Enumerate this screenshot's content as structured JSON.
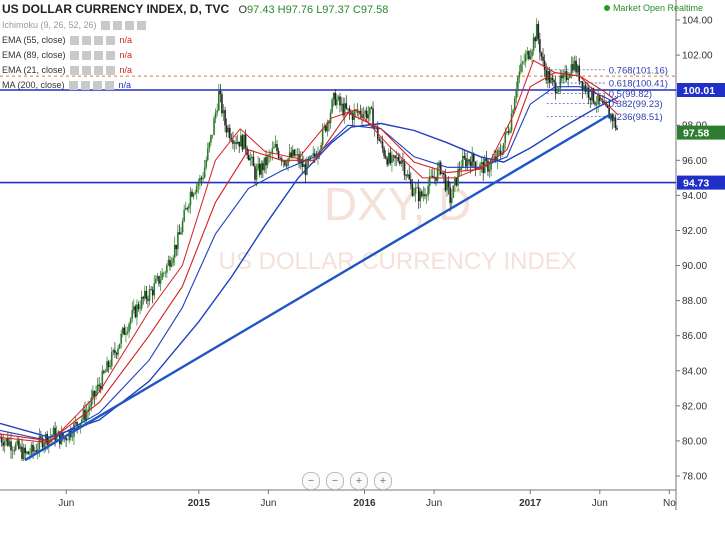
{
  "header": {
    "symbol": "US DOLLAR CURRENCY INDEX, D, TVC",
    "open": "97.43",
    "high": "H97.76",
    "low": "L97.37",
    "close": "C97.58",
    "open_prefix": "O",
    "market_status": "Market Open",
    "realtime": "Realtime"
  },
  "indicators": [
    {
      "label": "Ichimoku (9, 26, 52, 26)",
      "value": "",
      "color": "#999999"
    },
    {
      "label": "EMA (55, close)",
      "value": "n/a",
      "color": "#d02020"
    },
    {
      "label": "EMA (89, close)",
      "value": "n/a",
      "color": "#d02020"
    },
    {
      "label": "EMA (21, close)",
      "value": "n/a",
      "color": "#d02020"
    },
    {
      "label": "MA (200, close)",
      "value": "n/a",
      "color": "#2030d0"
    }
  ],
  "watermark": {
    "big": "DXY, D",
    "sub": "US DOLLAR CURRENCY INDEX"
  },
  "zoom_controls": [
    "−",
    "−",
    "+",
    "+"
  ],
  "chart_data": {
    "type": "candlestick",
    "y_ticks": [
      78,
      80,
      82,
      84,
      86,
      88,
      90,
      92,
      94,
      96,
      98,
      100,
      102,
      104
    ],
    "ylim": [
      77.2,
      104.8
    ],
    "x_ticks": [
      {
        "label": "Jun",
        "t": 0.2
      },
      {
        "label": "2015",
        "t": 1.0
      },
      {
        "label": "Jun",
        "t": 1.42
      },
      {
        "label": "2016",
        "t": 2.0
      },
      {
        "label": "Jun",
        "t": 2.42
      },
      {
        "label": "2017",
        "t": 3.0
      },
      {
        "label": "Jun",
        "t": 3.42
      },
      {
        "label": "No",
        "t": 3.84
      }
    ],
    "xlim": [
      -0.2,
      3.88
    ],
    "price_path": [
      [
        -0.2,
        80.2
      ],
      [
        -0.12,
        79.8
      ],
      [
        -0.05,
        79.2
      ],
      [
        0.0,
        79.4
      ],
      [
        0.06,
        80.1
      ],
      [
        0.12,
        80.4
      ],
      [
        0.18,
        80.1
      ],
      [
        0.24,
        80.7
      ],
      [
        0.32,
        81.6
      ],
      [
        0.4,
        83.2
      ],
      [
        0.48,
        84.8
      ],
      [
        0.56,
        86.5
      ],
      [
        0.64,
        87.8
      ],
      [
        0.72,
        88.6
      ],
      [
        0.8,
        89.8
      ],
      [
        0.88,
        91.6
      ],
      [
        0.95,
        94.2
      ],
      [
        1.02,
        95.0
      ],
      [
        1.08,
        97.5
      ],
      [
        1.12,
        99.8
      ],
      [
        1.16,
        98.0
      ],
      [
        1.22,
        97.2
      ],
      [
        1.28,
        97.0
      ],
      [
        1.34,
        95.2
      ],
      [
        1.4,
        95.8
      ],
      [
        1.46,
        96.7
      ],
      [
        1.52,
        96.0
      ],
      [
        1.58,
        96.3
      ],
      [
        1.64,
        95.5
      ],
      [
        1.7,
        96.2
      ],
      [
        1.76,
        97.8
      ],
      [
        1.82,
        99.6
      ],
      [
        1.86,
        99.0
      ],
      [
        1.92,
        98.6
      ],
      [
        1.98,
        98.8
      ],
      [
        2.04,
        98.6
      ],
      [
        2.1,
        96.8
      ],
      [
        2.16,
        95.8
      ],
      [
        2.22,
        96.2
      ],
      [
        2.28,
        94.5
      ],
      [
        2.34,
        93.9
      ],
      [
        2.4,
        94.8
      ],
      [
        2.46,
        95.6
      ],
      [
        2.52,
        93.7
      ],
      [
        2.58,
        95.8
      ],
      [
        2.64,
        96.1
      ],
      [
        2.7,
        95.6
      ],
      [
        2.76,
        95.7
      ],
      [
        2.82,
        96.4
      ],
      [
        2.88,
        98.2
      ],
      [
        2.92,
        100.6
      ],
      [
        2.96,
        101.6
      ],
      [
        3.0,
        102.3
      ],
      [
        3.04,
        103.4
      ],
      [
        3.08,
        101.3
      ],
      [
        3.14,
        100.2
      ],
      [
        3.2,
        100.5
      ],
      [
        3.26,
        101.6
      ],
      [
        3.32,
        100.3
      ],
      [
        3.38,
        99.6
      ],
      [
        3.44,
        99.0
      ],
      [
        3.5,
        98.4
      ],
      [
        3.53,
        97.6
      ]
    ],
    "overlays": [
      {
        "name": "MA (200, close)",
        "color": "#1f3fbf",
        "width": 1.4,
        "points": [
          [
            -0.2,
            81.0
          ],
          [
            0.1,
            80.2
          ],
          [
            0.4,
            81.2
          ],
          [
            0.7,
            83.4
          ],
          [
            1.0,
            86.8
          ],
          [
            1.2,
            89.4
          ],
          [
            1.4,
            92.3
          ],
          [
            1.6,
            95.0
          ],
          [
            1.8,
            97.0
          ],
          [
            1.92,
            97.9
          ],
          [
            2.1,
            98.1
          ],
          [
            2.3,
            97.7
          ],
          [
            2.5,
            97.0
          ],
          [
            2.7,
            96.2
          ],
          [
            2.84,
            95.9
          ],
          [
            3.0,
            96.7
          ],
          [
            3.2,
            97.9
          ],
          [
            3.4,
            99.0
          ],
          [
            3.53,
            99.6
          ]
        ]
      },
      {
        "name": "EMA (89, close)",
        "color": "#1f3fbf",
        "width": 1.1,
        "points": [
          [
            -0.2,
            80.6
          ],
          [
            0.1,
            80.0
          ],
          [
            0.4,
            81.6
          ],
          [
            0.7,
            84.6
          ],
          [
            0.9,
            87.6
          ],
          [
            1.1,
            91.8
          ],
          [
            1.3,
            94.4
          ],
          [
            1.5,
            95.4
          ],
          [
            1.7,
            96.2
          ],
          [
            1.9,
            98.0
          ],
          [
            2.1,
            97.8
          ],
          [
            2.3,
            96.2
          ],
          [
            2.5,
            95.6
          ],
          [
            2.7,
            95.6
          ],
          [
            2.86,
            96.2
          ],
          [
            3.0,
            99.2
          ],
          [
            3.15,
            100.2
          ],
          [
            3.3,
            100.2
          ],
          [
            3.45,
            99.6
          ],
          [
            3.53,
            99.2
          ]
        ]
      },
      {
        "name": "EMA (55, close)",
        "color": "#d42020",
        "width": 1.1,
        "points": [
          [
            -0.2,
            80.4
          ],
          [
            0.1,
            80.0
          ],
          [
            0.4,
            82.2
          ],
          [
            0.7,
            86.0
          ],
          [
            0.9,
            88.8
          ],
          [
            1.1,
            93.6
          ],
          [
            1.3,
            96.6
          ],
          [
            1.5,
            96.0
          ],
          [
            1.7,
            96.0
          ],
          [
            1.9,
            98.7
          ],
          [
            2.1,
            97.8
          ],
          [
            2.3,
            95.9
          ],
          [
            2.5,
            95.3
          ],
          [
            2.7,
            95.5
          ],
          [
            2.86,
            96.6
          ],
          [
            3.0,
            100.2
          ],
          [
            3.15,
            101.0
          ],
          [
            3.3,
            100.8
          ],
          [
            3.45,
            99.9
          ],
          [
            3.53,
            99.3
          ]
        ]
      },
      {
        "name": "EMA (21, close)",
        "color": "#d42020",
        "width": 1.0,
        "points": [
          [
            -0.2,
            80.2
          ],
          [
            0.1,
            79.9
          ],
          [
            0.4,
            82.8
          ],
          [
            0.7,
            87.4
          ],
          [
            0.9,
            90.0
          ],
          [
            1.1,
            96.0
          ],
          [
            1.25,
            97.8
          ],
          [
            1.4,
            96.5
          ],
          [
            1.6,
            96.1
          ],
          [
            1.8,
            98.4
          ],
          [
            1.95,
            98.9
          ],
          [
            2.15,
            96.8
          ],
          [
            2.35,
            95.0
          ],
          [
            2.55,
            95.0
          ],
          [
            2.75,
            95.8
          ],
          [
            2.9,
            98.6
          ],
          [
            3.02,
            101.7
          ],
          [
            3.15,
            101.0
          ],
          [
            3.3,
            100.8
          ],
          [
            3.45,
            99.3
          ],
          [
            3.53,
            98.6
          ]
        ]
      }
    ],
    "trendline": {
      "color": "#1f55c7",
      "from": [
        -0.05,
        78.9
      ],
      "to": [
        3.48,
        98.6
      ]
    },
    "horizontal_lines": [
      {
        "value": 100.01,
        "color": "#1f2fc7",
        "label": "100.01"
      },
      {
        "value": 94.73,
        "color": "#1f2fc7",
        "label": "94.73"
      }
    ],
    "dashed_line": {
      "value": 100.8,
      "color": "#e8742a"
    },
    "fibonacci": {
      "t_from": 3.1,
      "t_to": 3.45,
      "color": "#3040b0",
      "levels": [
        {
          "ratio": "0.768",
          "price": 101.16,
          "label": "0.768(101.16)"
        },
        {
          "ratio": "0.618",
          "price": 100.41,
          "label": "0.618(100.41)"
        },
        {
          "ratio": "0.5",
          "price": 99.82,
          "label": "0.5(99.82)"
        },
        {
          "ratio": "0.382",
          "price": 99.23,
          "label": "0.382(99.23)"
        },
        {
          "ratio": "0.236",
          "price": 98.51,
          "label": "0.236(98.51)"
        }
      ]
    },
    "last_price": {
      "value": 97.58,
      "label": "97.58",
      "color": "#2e7d32"
    }
  }
}
